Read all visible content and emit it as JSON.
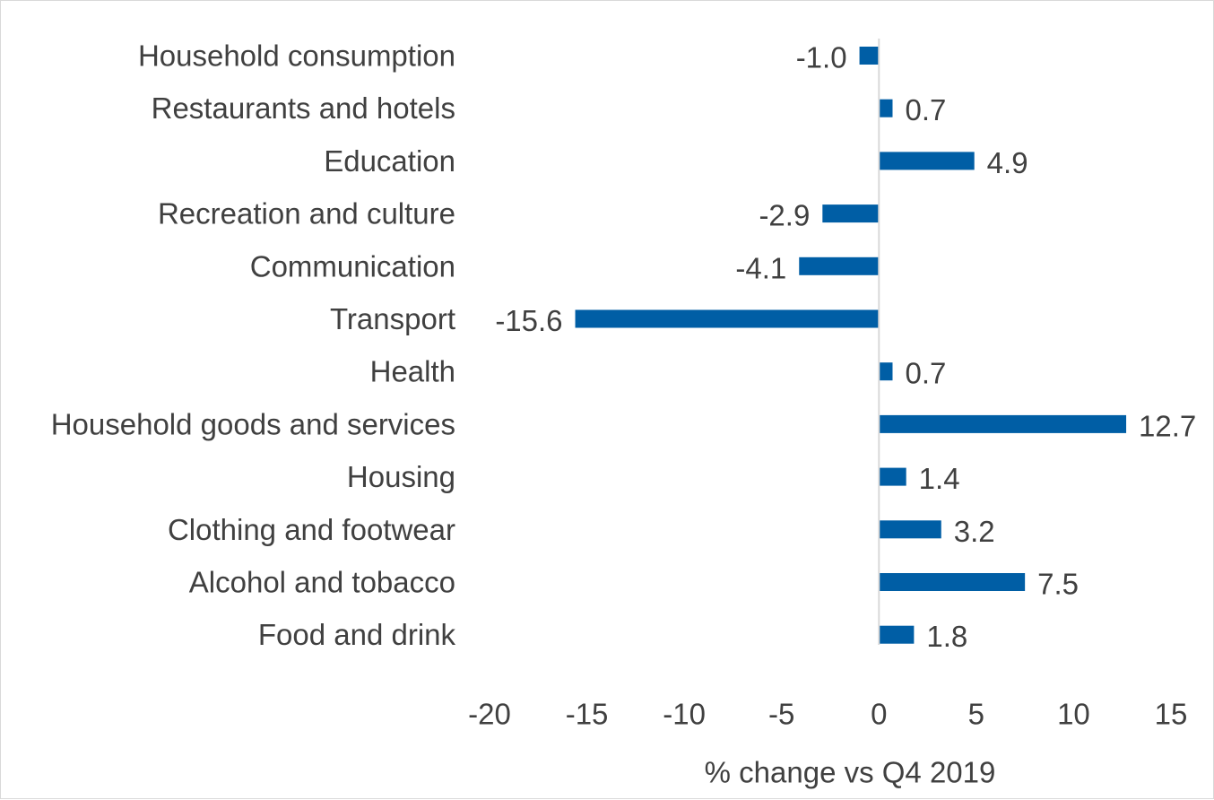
{
  "chart_data": {
    "type": "bar",
    "orientation": "horizontal",
    "categories": [
      "Household consumption",
      "Restaurants and hotels",
      "Education",
      "Recreation and culture",
      "Communication",
      "Transport",
      "Health",
      "Household goods and services",
      "Housing",
      "Clothing and footwear",
      "Alcohol and tobacco",
      "Food and drink"
    ],
    "values": [
      -1.0,
      0.7,
      4.9,
      -2.9,
      -4.1,
      -15.6,
      0.7,
      12.7,
      1.4,
      3.2,
      7.5,
      1.8
    ],
    "value_labels": [
      "-1.0",
      "0.7",
      "4.9",
      "-2.9",
      "-4.1",
      "-15.6",
      "0.7",
      "12.7",
      "1.4",
      "3.2",
      "7.5",
      "1.8"
    ],
    "xlabel": "% change vs Q4 2019",
    "xlim": [
      -20,
      15
    ],
    "xticks": [
      -20,
      -15,
      -10,
      -5,
      0,
      5,
      10,
      15
    ],
    "xtick_labels": [
      "-20",
      "-15",
      "-10",
      "-5",
      "0",
      "5",
      "10",
      "15"
    ],
    "grid": false,
    "bar_color": "#005EA5",
    "axis_color": "#d9d9d9"
  }
}
